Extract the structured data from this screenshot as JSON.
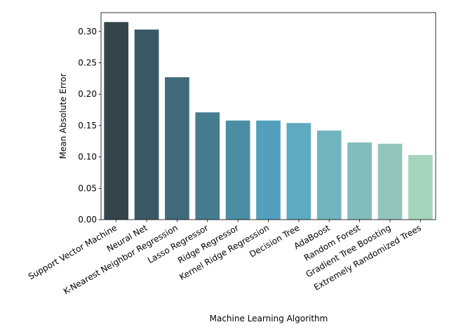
{
  "chart_data": {
    "type": "bar",
    "title": "",
    "xlabel": "Machine Learning Algorithm",
    "ylabel": "Mean Absolute Error",
    "ylim": [
      0,
      0.33
    ],
    "yticks": [
      "0.00",
      "0.05",
      "0.10",
      "0.15",
      "0.20",
      "0.25",
      "0.30"
    ],
    "grid": false,
    "legend": "none",
    "categories": [
      "Support Vector Machine",
      "Neural Net",
      "K-Nearest Neighbor Regression",
      "Lasso Regressor",
      "Ridge Regressor",
      "Kernel Ridge Regression",
      "Decision Tree",
      "AdaBoost",
      "Random Forest",
      "Gradient Tree Boosting",
      "Extremely Randomized Trees"
    ],
    "values": [
      0.315,
      0.303,
      0.227,
      0.171,
      0.158,
      0.158,
      0.154,
      0.142,
      0.123,
      0.121,
      0.103
    ],
    "colors": [
      "#35444a",
      "#3b5866",
      "#416a7a",
      "#457d8e",
      "#4a8ea4",
      "#52a0bd",
      "#5eaac0",
      "#72b4be",
      "#82bcbc",
      "#94c5bd",
      "#a6d3bc"
    ]
  }
}
